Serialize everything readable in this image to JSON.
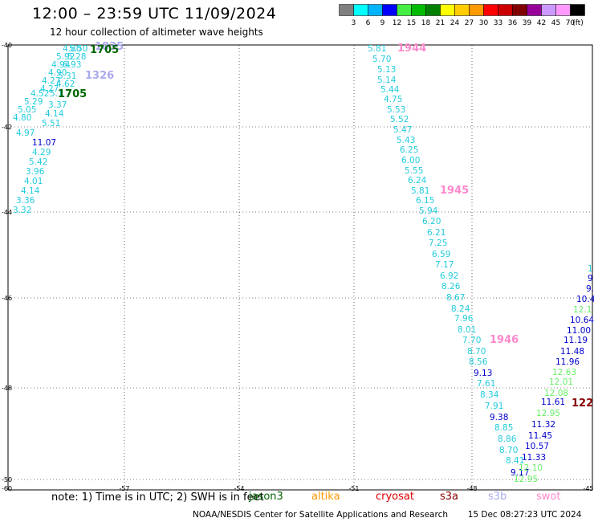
{
  "header": {
    "title": "12:00 – 23:59 UTC 11/09/2024",
    "subtitle": "12 hour collection of altimeter wave heights"
  },
  "colorbar": {
    "unit": "(ft)",
    "labels": [
      "3",
      "6",
      "9",
      "12",
      "15",
      "18",
      "21",
      "24",
      "27",
      "30",
      "33",
      "36",
      "39",
      "42",
      "45",
      "70"
    ],
    "colors": [
      "#808080",
      "#00ffff",
      "#00b4ff",
      "#0000ff",
      "#44ee44",
      "#00bb00",
      "#008000",
      "#ffff00",
      "#ffcc00",
      "#ff9900",
      "#ff0000",
      "#cc0000",
      "#800000",
      "#990099",
      "#cc99ff",
      "#ff99ff",
      "#000000"
    ]
  },
  "map": {
    "lon_ticks": [
      "-57",
      "-54",
      "-51",
      "-48",
      "-45"
    ],
    "lat_ticks": [
      "-40",
      "-42",
      "-44",
      "-46",
      "-48",
      "-50"
    ],
    "corner_labels": [
      "-60"
    ],
    "track_colors": {
      "cyan": "#22ccdd",
      "blue": "#0000cc",
      "green": "#006600",
      "lime": "#66ee66",
      "pink": "#ff88cc",
      "lav": "#aaaaee",
      "maroon": "#880000"
    },
    "labels": [
      {
        "t": "4.80",
        "c": "cyan"
      },
      {
        "t": "5.50",
        "c": "cyan"
      },
      {
        "t": "1835",
        "c": "lav"
      },
      {
        "t": "1705",
        "c": "green"
      },
      {
        "t": "5.92",
        "c": "cyan"
      },
      {
        "t": "5.28",
        "c": "cyan"
      },
      {
        "t": "4.94",
        "c": "cyan"
      },
      {
        "t": "6.93",
        "c": "cyan"
      },
      {
        "t": "4.90",
        "c": "cyan"
      },
      {
        "t": "5.31",
        "c": "cyan"
      },
      {
        "t": "1326",
        "c": "lav"
      },
      {
        "t": "4.27",
        "c": "cyan"
      },
      {
        "t": "4.62",
        "c": "cyan"
      },
      {
        "t": "4.27",
        "c": "cyan"
      },
      {
        "t": "4.52",
        "c": "cyan"
      },
      {
        "t": "5.1",
        "c": "cyan"
      },
      {
        "t": "1705",
        "c": "green"
      },
      {
        "t": "5.29",
        "c": "cyan"
      },
      {
        "t": "3.37",
        "c": "cyan"
      },
      {
        "t": "5.05",
        "c": "cyan"
      },
      {
        "t": "4.14",
        "c": "cyan"
      },
      {
        "t": "4.80",
        "c": "cyan"
      },
      {
        "t": "5.51",
        "c": "cyan"
      },
      {
        "t": "4.97",
        "c": "cyan"
      },
      {
        "t": "11.07",
        "c": "blue"
      },
      {
        "t": "4.29",
        "c": "cyan"
      },
      {
        "t": "5.42",
        "c": "cyan"
      },
      {
        "t": "3.96",
        "c": "cyan"
      },
      {
        "t": "4.01",
        "c": "cyan"
      },
      {
        "t": "4.14",
        "c": "cyan"
      },
      {
        "t": "3.36",
        "c": "cyan"
      },
      {
        "t": "3.32",
        "c": "cyan"
      },
      {
        "t": "5.81",
        "c": "cyan"
      },
      {
        "t": "1944",
        "c": "pink"
      },
      {
        "t": "5.70",
        "c": "cyan"
      },
      {
        "t": "5.13",
        "c": "cyan"
      },
      {
        "t": "5.14",
        "c": "cyan"
      },
      {
        "t": "5.44",
        "c": "cyan"
      },
      {
        "t": "4.75",
        "c": "cyan"
      },
      {
        "t": "5.53",
        "c": "cyan"
      },
      {
        "t": "5.52",
        "c": "cyan"
      },
      {
        "t": "5.47",
        "c": "cyan"
      },
      {
        "t": "5.43",
        "c": "cyan"
      },
      {
        "t": "6.25",
        "c": "cyan"
      },
      {
        "t": "6.00",
        "c": "cyan"
      },
      {
        "t": "5.55",
        "c": "cyan"
      },
      {
        "t": "6.24",
        "c": "cyan"
      },
      {
        "t": "5.81",
        "c": "cyan"
      },
      {
        "t": "1945",
        "c": "pink"
      },
      {
        "t": "6.15",
        "c": "cyan"
      },
      {
        "t": "5.94",
        "c": "cyan"
      },
      {
        "t": "6.20",
        "c": "cyan"
      },
      {
        "t": "6.21",
        "c": "cyan"
      },
      {
        "t": "7.25",
        "c": "cyan"
      },
      {
        "t": "6.59",
        "c": "cyan"
      },
      {
        "t": "7.17",
        "c": "cyan"
      },
      {
        "t": "6.92",
        "c": "cyan"
      },
      {
        "t": "8.26",
        "c": "cyan"
      },
      {
        "t": "8.67",
        "c": "cyan"
      },
      {
        "t": "8.24",
        "c": "cyan"
      },
      {
        "t": "7.96",
        "c": "cyan"
      },
      {
        "t": "8.01",
        "c": "cyan"
      },
      {
        "t": "7.70",
        "c": "cyan"
      },
      {
        "t": "1946",
        "c": "pink"
      },
      {
        "t": "8.70",
        "c": "cyan"
      },
      {
        "t": "8.56",
        "c": "cyan"
      },
      {
        "t": "9.13",
        "c": "blue"
      },
      {
        "t": "7.61",
        "c": "cyan"
      },
      {
        "t": "8.34",
        "c": "cyan"
      },
      {
        "t": "7.91",
        "c": "cyan"
      },
      {
        "t": "9.38",
        "c": "blue"
      },
      {
        "t": "8.85",
        "c": "cyan"
      },
      {
        "t": "8.86",
        "c": "cyan"
      },
      {
        "t": "8.70",
        "c": "cyan"
      },
      {
        "t": "8.41",
        "c": "cyan"
      },
      {
        "t": "9.17",
        "c": "blue"
      },
      {
        "t": "12.95",
        "c": "lime"
      },
      {
        "t": "12.10",
        "c": "lime"
      },
      {
        "t": "11.33",
        "c": "blue"
      },
      {
        "t": "10.57",
        "c": "blue"
      },
      {
        "t": "11.45",
        "c": "blue"
      },
      {
        "t": "11.32",
        "c": "blue"
      },
      {
        "t": "12.95",
        "c": "lime"
      },
      {
        "t": "11.61",
        "c": "blue"
      },
      {
        "t": "122",
        "c": "maroon"
      },
      {
        "t": "12.08",
        "c": "lime"
      },
      {
        "t": "12.01",
        "c": "lime"
      },
      {
        "t": "12.63",
        "c": "lime"
      },
      {
        "t": "11.96",
        "c": "blue"
      },
      {
        "t": "11.48",
        "c": "blue"
      },
      {
        "t": "11.19",
        "c": "blue"
      },
      {
        "t": "11.00",
        "c": "blue"
      },
      {
        "t": "10.64",
        "c": "blue"
      },
      {
        "t": "12.1",
        "c": "lime"
      },
      {
        "t": "10.4",
        "c": "blue"
      },
      {
        "t": "9.",
        "c": "blue"
      },
      {
        "t": "9",
        "c": "blue"
      },
      {
        "t": "1",
        "c": "cyan"
      }
    ]
  },
  "note": {
    "text": "note:  1) Time is in UTC; 2) SWH is in feet",
    "satellites": [
      {
        "name": "jason3",
        "color": "#006600"
      },
      {
        "name": "altika",
        "color": "#ff9900"
      },
      {
        "name": "cryosat",
        "color": "#dd0000"
      },
      {
        "name": "s3a",
        "color": "#880000"
      },
      {
        "name": "s3b",
        "color": "#aaaaee"
      },
      {
        "name": "swot",
        "color": "#ff88cc"
      }
    ]
  },
  "footer": {
    "credit": "NOAA/NESDIS Center for Satellite Applications and Research",
    "timestamp": "15 Dec 08:27:23 UTC 2024"
  }
}
